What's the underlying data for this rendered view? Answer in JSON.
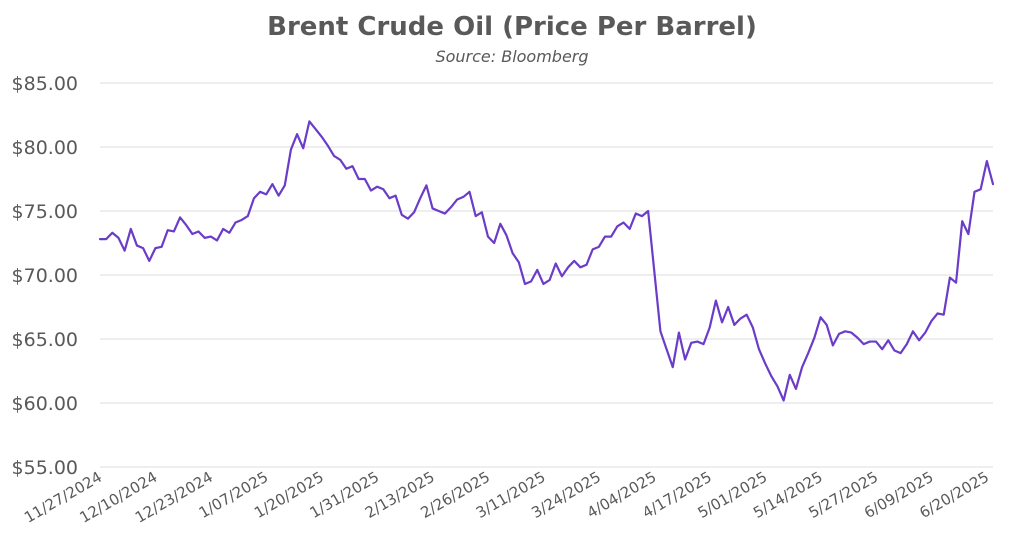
{
  "chart_data": {
    "type": "line",
    "title": "Brent Crude Oil (Price Per Barrel)",
    "subtitle": "Source: Bloomberg",
    "xlabel": "",
    "ylabel": "",
    "ylim": [
      55,
      85
    ],
    "y_ticks": [
      "$85.00",
      "$80.00",
      "$75.00",
      "$70.00",
      "$65.00",
      "$60.00",
      "$55.00"
    ],
    "y_tick_values": [
      85,
      80,
      75,
      70,
      65,
      60,
      55
    ],
    "x_ticks": [
      "11/27/2024",
      "12/10/2024",
      "12/23/2024",
      "1/07/2025",
      "1/20/2025",
      "1/31/2025",
      "2/13/2025",
      "2/26/2025",
      "3/11/2025",
      "3/24/2025",
      "4/04/2025",
      "4/17/2025",
      "5/01/2025",
      "5/14/2025",
      "5/27/2025",
      "6/09/2025",
      "6/20/2025"
    ],
    "grid": true,
    "legend": "none",
    "line_color": "#6a3cc8",
    "series": [
      {
        "values": [
          72.8,
          72.8,
          73.3,
          72.9,
          71.9,
          73.6,
          72.3,
          72.1,
          71.1,
          72.1,
          72.2,
          73.5,
          73.4,
          74.5,
          73.9,
          73.2,
          73.4,
          72.9,
          73.0,
          72.7,
          73.6,
          73.3,
          74.1,
          74.3,
          74.6,
          76.0,
          76.5,
          76.3,
          77.1,
          76.2,
          77.0,
          79.8,
          81.0,
          79.9,
          82.0,
          81.4,
          80.8,
          80.1,
          79.3,
          79.0,
          78.3,
          78.5,
          77.5,
          77.5,
          76.6,
          76.9,
          76.7,
          76.0,
          76.2,
          74.7,
          74.4,
          74.9,
          76.0,
          77.0,
          75.2,
          75.0,
          74.8,
          75.3,
          75.9,
          76.1,
          76.5,
          74.6,
          74.9,
          73.0,
          72.5,
          74.0,
          73.1,
          71.7,
          71.0,
          69.3,
          69.5,
          70.4,
          69.3,
          69.6,
          70.9,
          69.9,
          70.6,
          71.1,
          70.6,
          70.8,
          72.0,
          72.2,
          73.0,
          73.0,
          73.8,
          74.1,
          73.6,
          74.8,
          74.6,
          75.0,
          70.3,
          65.6,
          64.2,
          62.8,
          65.5,
          63.4,
          64.7,
          64.8,
          64.6,
          65.9,
          68.0,
          66.3,
          67.5,
          66.1,
          66.6,
          66.9,
          65.9,
          64.2,
          63.1,
          62.1,
          61.3,
          60.2,
          62.2,
          61.1,
          62.8,
          63.9,
          65.1,
          66.7,
          66.1,
          64.5,
          65.4,
          65.6,
          65.5,
          65.1,
          64.6,
          64.8,
          64.8,
          64.2,
          64.9,
          64.1,
          63.9,
          64.6,
          65.6,
          64.9,
          65.5,
          66.4,
          67.0,
          66.9,
          69.8,
          69.4,
          74.2,
          73.2,
          76.5,
          76.7,
          78.9,
          77.1
        ]
      }
    ]
  }
}
